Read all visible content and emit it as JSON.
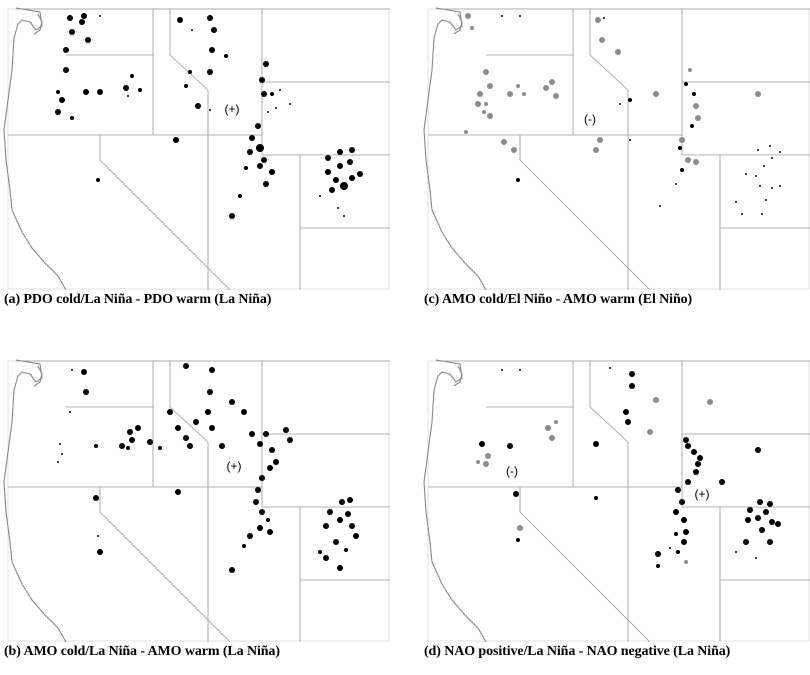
{
  "colors": {
    "positive": "#000000",
    "negative": "#8c8c8c",
    "border": "#9a9a9a",
    "coast": "#888888"
  },
  "panels": [
    {
      "id": "a",
      "caption": "(a) PDO cold/La Niña - PDO warm (La Niña)",
      "signs": [
        "(+)"
      ]
    },
    {
      "id": "c",
      "caption": "(c) AMO cold/El Niño - AMO warm (El Niño)",
      "signs": [
        "(-)"
      ]
    },
    {
      "id": "b",
      "caption": "(b) AMO cold/La Niña - AMO warm (La Niña)",
      "signs": [
        "(+)"
      ]
    },
    {
      "id": "d",
      "caption": "(d) NAO positive/La Niña - NAO negative (La Niña)",
      "signs": [
        "(-)",
        "(+)"
      ]
    }
  ]
}
